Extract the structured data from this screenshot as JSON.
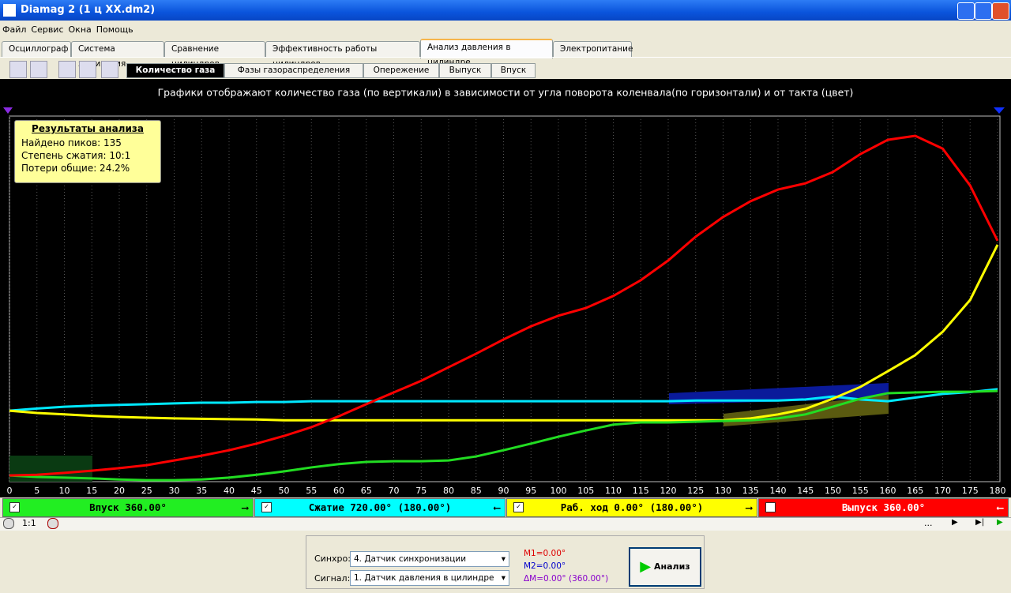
{
  "window": {
    "title": "Diamag 2 (1 ц XX.dm2)"
  },
  "menu": [
    "Файл",
    "Сервис",
    "Окна",
    "Помощь"
  ],
  "tabs": [
    "Осциллограф",
    "Система зажигания",
    "Сравнение цилиндров",
    "Эффективность работы цилиндров",
    "Анализ давления в цилиндре",
    "Электропитание"
  ],
  "subtabs": [
    "Количество газа",
    "Фазы газораспределения",
    "Опережение",
    "Выпуск",
    "Впуск"
  ],
  "chart_data": {
    "type": "line",
    "caption": "Графики отображают количество газа (по вертикали) в зависимости от угла поворота коленвала(по горизонтали) и от такта (цвет)",
    "x": [
      0,
      5,
      10,
      15,
      20,
      25,
      30,
      35,
      40,
      45,
      50,
      55,
      60,
      65,
      70,
      75,
      80,
      85,
      90,
      95,
      100,
      105,
      110,
      115,
      120,
      125,
      130,
      135,
      140,
      145,
      150,
      155,
      160,
      165,
      170,
      175,
      180
    ],
    "xlim": [
      0,
      180
    ],
    "xticks": [
      0,
      5,
      10,
      15,
      20,
      25,
      30,
      35,
      40,
      45,
      50,
      55,
      60,
      65,
      70,
      75,
      80,
      85,
      90,
      95,
      100,
      105,
      110,
      115,
      120,
      125,
      130,
      135,
      140,
      145,
      150,
      155,
      160,
      165,
      170,
      175,
      180
    ],
    "ylim": [
      0,
      100
    ],
    "grid": true,
    "series": [
      {
        "name": "Сжатие",
        "color": "#00e8ff",
        "values": [
          19.4,
          20,
          20.5,
          20.8,
          21,
          21.2,
          21.4,
          21.6,
          21.6,
          21.8,
          21.8,
          22,
          22,
          22,
          22,
          22,
          22,
          22,
          22,
          22,
          22,
          22,
          22,
          22,
          22,
          22.2,
          22.2,
          22.2,
          22.2,
          22.5,
          23.3,
          22.5,
          22,
          23,
          24,
          24.5,
          25.3
        ]
      },
      {
        "name": "Раб. ход",
        "color": "#ffff00",
        "values": [
          19.4,
          18.8,
          18.4,
          18,
          17.7,
          17.5,
          17.3,
          17.2,
          17.1,
          17,
          16.8,
          16.8,
          16.8,
          16.8,
          16.8,
          16.8,
          16.8,
          16.8,
          16.8,
          16.8,
          16.8,
          16.8,
          16.8,
          16.8,
          16.8,
          16.8,
          16.8,
          17.3,
          18.4,
          19.9,
          22.7,
          25.9,
          30.2,
          34.6,
          41,
          49.7,
          64.8
        ]
      },
      {
        "name": "Впуск",
        "color": "#22dd22",
        "values": [
          1.7,
          1.3,
          1.1,
          0.9,
          0.6,
          0.4,
          0.4,
          0.6,
          1.1,
          1.9,
          2.8,
          3.9,
          4.8,
          5.4,
          5.6,
          5.6,
          5.8,
          6.9,
          8.6,
          10.4,
          12.3,
          14,
          15.6,
          16.2,
          16.2,
          16.4,
          16.6,
          16.8,
          17.3,
          18.4,
          20.5,
          22.7,
          24.2,
          24.4,
          24.6,
          24.6,
          24.8
        ]
      },
      {
        "name": "Выпуск",
        "color": "#ff0000",
        "values": [
          1.7,
          1.9,
          2.4,
          3,
          3.7,
          4.5,
          5.8,
          7.1,
          8.6,
          10.4,
          12.5,
          14.9,
          17.9,
          21.2,
          24.4,
          27.6,
          31.3,
          35,
          38.9,
          42.5,
          45.4,
          47.5,
          50.8,
          55.1,
          60.5,
          67,
          72.4,
          76.7,
          79.9,
          81.6,
          84.7,
          89.6,
          93.5,
          94.6,
          91.1,
          81,
          65.9
        ]
      }
    ]
  },
  "info": {
    "title": "Результаты анализа",
    "lines": [
      "Найдено пиков: 135",
      "Степень сжатия: 10:1",
      "Потери общие: 24.2%"
    ]
  },
  "phases": [
    {
      "label": "Впуск 360.00°",
      "color": "#22ee22"
    },
    {
      "label": "Сжатие 720.00° (180.00°)",
      "color": "#00ffff"
    },
    {
      "label": "Раб. ход 0.00° (180.00°)",
      "color": "#ffff00"
    },
    {
      "label": "Выпуск 360.00°",
      "color": "#ff0000"
    }
  ],
  "scroll": {
    "zoom": "1:1",
    "dots": "..."
  },
  "panel": {
    "sync_label": "Синхро:",
    "sync_value": "4.  Датчик синхронизации",
    "signal_label": "Сигнал:",
    "signal_value": "1.  Датчик давления в цилиндре",
    "m1": "M1=0.00°",
    "m2": "M2=0.00°",
    "dm": "ΔM=0.00° (360.00°)",
    "button": "Анализ"
  }
}
